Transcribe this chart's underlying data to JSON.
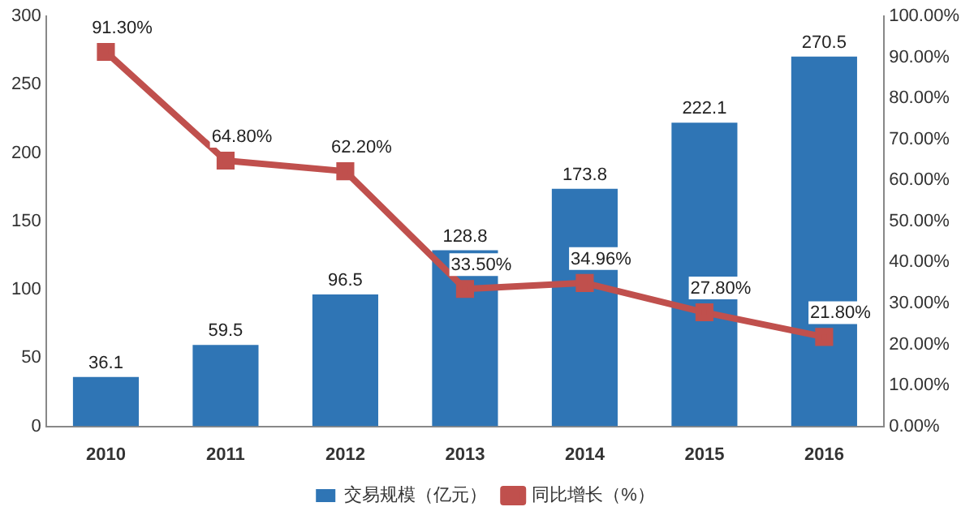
{
  "chart_data": {
    "type": "bar",
    "categories": [
      "2010",
      "2011",
      "2012",
      "2013",
      "2014",
      "2015",
      "2016"
    ],
    "series": [
      {
        "name": "交易规模（亿元）",
        "color": "#2f75b5",
        "values": [
          36.1,
          59.5,
          96.5,
          128.8,
          173.8,
          222.1,
          270.5
        ],
        "value_labels": [
          "36.1",
          "59.5",
          "96.5",
          "128.8",
          "173.8",
          "222.1",
          "270.5"
        ]
      },
      {
        "name": "同比增长（%）",
        "type": "line",
        "axis": "y2",
        "color": "#c0504d",
        "marker": "square",
        "values": [
          91.3,
          64.8,
          62.2,
          33.5,
          34.96,
          27.8,
          21.8
        ],
        "value_labels": [
          "91.30%",
          "64.80%",
          "62.20%",
          "33.50%",
          "34.96%",
          "27.80%",
          "21.80%"
        ]
      }
    ],
    "ylim": [
      0,
      300
    ],
    "yticks": [
      0,
      50,
      100,
      150,
      200,
      250,
      300
    ],
    "y2lim": [
      0,
      100
    ],
    "y2ticks": [
      {
        "value": 0,
        "label": "0.00%"
      },
      {
        "value": 10,
        "label": "10.00%"
      },
      {
        "value": 20,
        "label": "20.00%"
      },
      {
        "value": 30,
        "label": "30.00%"
      },
      {
        "value": 40,
        "label": "40.00%"
      },
      {
        "value": 50,
        "label": "50.00%"
      },
      {
        "value": 60,
        "label": "60.00%"
      },
      {
        "value": 70,
        "label": "70.00%"
      },
      {
        "value": 80,
        "label": "80.00%"
      },
      {
        "value": 90,
        "label": "90.00%"
      },
      {
        "value": 100,
        "label": "100.00%"
      }
    ],
    "grid": false,
    "legend": "bottom"
  }
}
